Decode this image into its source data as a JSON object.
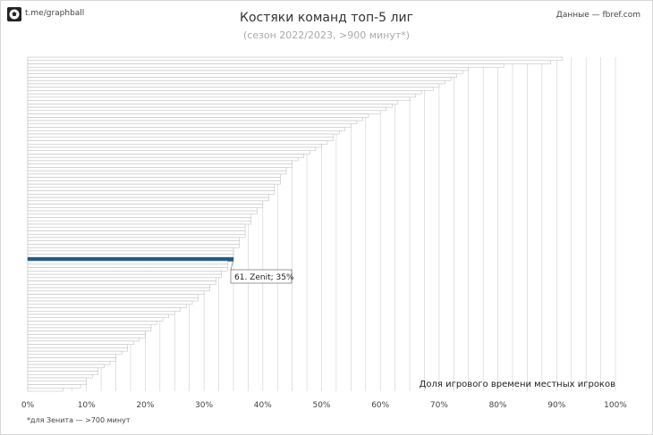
{
  "header": {
    "brand": "t.me/graphball",
    "source": "Данные — fbref.com",
    "title": "Костяки команд топ-5 лиг",
    "subtitle": "(сезон 2022/2023, >900 минут*)",
    "footnote": "*для Зенита — >700 минут"
  },
  "colors": {
    "bar_fill": "#ffffff",
    "bar_stroke": "#b8b8b8",
    "highlight": "#1f5c87",
    "grid": "#d0d0d0"
  },
  "chart_data": {
    "type": "bar",
    "orientation": "horizontal",
    "xlabel": "Доля игрового времени местных игроков",
    "xlim": [
      0,
      100
    ],
    "xticks": [
      "0%",
      "10%",
      "20%",
      "30%",
      "40%",
      "50%",
      "60%",
      "70%",
      "80%",
      "90%",
      "100%"
    ],
    "grid": true,
    "highlight": {
      "rank": 61,
      "label": "61. Zenit; 35%",
      "value": 35
    },
    "values": [
      91,
      89,
      81,
      75,
      74,
      73,
      72,
      71,
      70,
      69,
      67,
      66,
      65,
      63,
      62,
      61,
      60,
      58,
      57,
      56,
      55,
      54,
      53,
      52,
      52,
      51,
      50,
      49,
      48,
      47,
      46,
      45,
      45,
      44,
      44,
      43,
      43,
      43,
      42,
      42,
      42,
      41,
      41,
      40,
      40,
      39,
      39,
      38,
      38,
      38,
      37,
      37,
      37,
      37,
      36,
      36,
      36,
      35,
      35,
      35,
      35,
      34,
      34,
      34,
      33,
      33,
      32,
      32,
      31,
      31,
      30,
      29,
      29,
      28,
      27,
      26,
      25,
      24,
      23,
      22,
      21,
      21,
      20,
      20,
      19,
      18,
      17,
      17,
      16,
      15,
      15,
      14,
      13,
      12,
      12,
      11,
      10,
      10,
      9,
      6
    ]
  }
}
